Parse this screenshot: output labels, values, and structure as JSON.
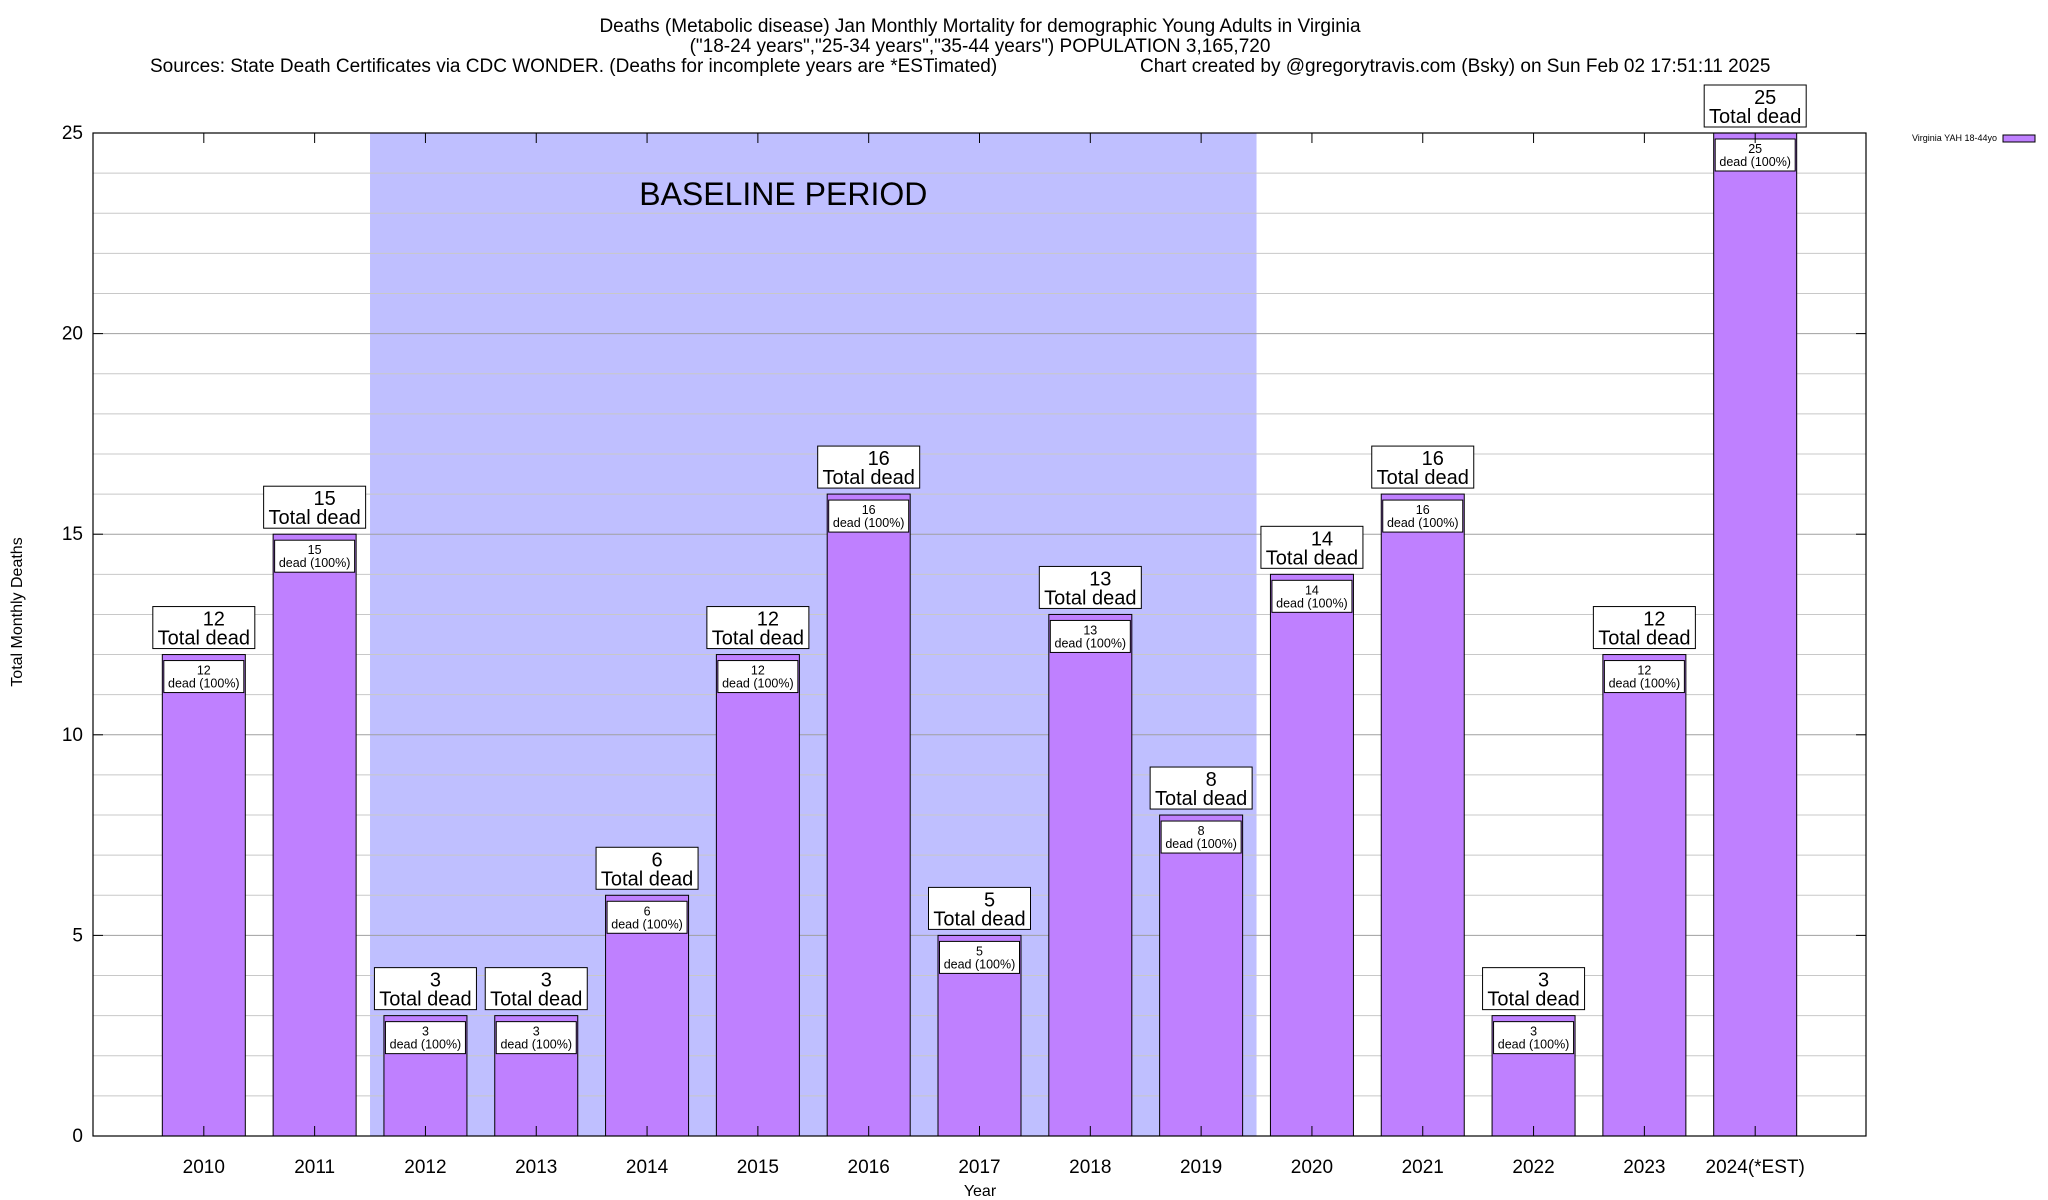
{
  "header": {
    "title_line1": "Deaths (Metabolic disease) Jan Monthly Mortality for demographic Young Adults in Virginia",
    "title_line2": "(\"18-24 years\",\"25-34 years\",\"35-44 years\") POPULATION 3,165,720",
    "sources": "Sources: State Death Certificates via CDC WONDER. (Deaths for incomplete years are *ESTimated)",
    "credit": "Chart created by @gregorytravis.com (Bsky) on Sun Feb 02 17:51:11 2025"
  },
  "chart_data": {
    "type": "bar",
    "categories": [
      "2010",
      "2011",
      "2012",
      "2013",
      "2014",
      "2015",
      "2016",
      "2017",
      "2018",
      "2019",
      "2020",
      "2021",
      "2022",
      "2023",
      "2024(*EST)"
    ],
    "series": [
      {
        "name": "Virginia YAH 18-44yo",
        "values": [
          12,
          15,
          3,
          3,
          6,
          12,
          16,
          5,
          13,
          8,
          14,
          16,
          3,
          12,
          25
        ]
      }
    ],
    "xlabel": "Year",
    "ylabel": "Total Monthly Deaths",
    "ylim": [
      0,
      25
    ],
    "yticks": [
      0,
      5,
      10,
      15,
      20,
      25
    ],
    "grid": true,
    "legend_position": "top-right",
    "bar_color": "#bf80ff",
    "baseline_band": {
      "label": "BASELINE PERIOD",
      "from": "2012",
      "to": "2019",
      "color": "#bfbfff"
    },
    "label_top_suffix": "Total dead",
    "label_inner_suffix": "dead (100%)"
  }
}
